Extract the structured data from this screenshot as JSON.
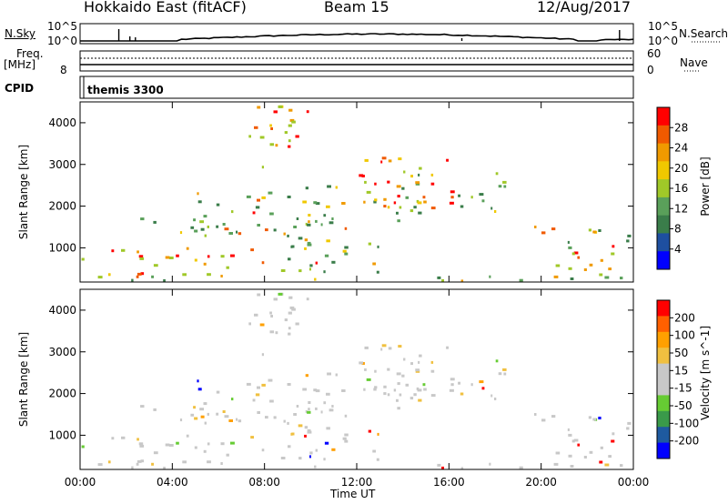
{
  "header": {
    "station": "Hokkaido East (fitACF)",
    "beam": "Beam 15",
    "date": "12/Aug/2017"
  },
  "top_panel": {
    "nsky_label": "N.Sky",
    "nsearch_label": "N.Search",
    "nsky_ticks": [
      "10^5",
      "10^0"
    ],
    "nsearch_ticks": [
      "10^5",
      "10^0"
    ],
    "freq_label": "Freq.",
    "freq_unit": "[MHz]",
    "freq_tick": "8",
    "nave_label": "Nave",
    "nave_ticks": [
      "60",
      "0"
    ],
    "cpid_label": "CPID",
    "cpid_value": "themis 3300"
  },
  "colors": {
    "power_scale": [
      "#0000ff",
      "#1e4fa0",
      "#3a7d4a",
      "#5aa05a",
      "#a0c828",
      "#f0c800",
      "#f09a00",
      "#f05a00",
      "#ff0000"
    ],
    "velocity_scale": [
      "#ff0000",
      "#ff6000",
      "#ffa000",
      "#f0c040",
      "#c8c8c8",
      "#c8c8c8",
      "#66cc33",
      "#3a9a4a",
      "#1e5aa0",
      "#0000ff"
    ]
  },
  "chart_data": [
    {
      "type": "heatmap",
      "panel": "power",
      "ylabel": "Slant Range [km]",
      "y_ticks": [
        "1000",
        "2000",
        "3000",
        "4000"
      ],
      "ylim": [
        180,
        4500
      ],
      "x_ticks": [
        "00:00",
        "04:00",
        "08:00",
        "12:00",
        "16:00",
        "20:00",
        "00:00"
      ],
      "colorbar_label": "Power [dB]",
      "colorbar_ticks": [
        "4",
        "8",
        "12",
        "16",
        "20",
        "24",
        "28"
      ],
      "range": [
        0,
        30
      ]
    },
    {
      "type": "heatmap",
      "panel": "velocity",
      "ylabel": "Slant Range [km]",
      "y_ticks": [
        "1000",
        "2000",
        "3000",
        "4000"
      ],
      "ylim": [
        180,
        4500
      ],
      "x_ticks": [
        "00:00",
        "04:00",
        "08:00",
        "12:00",
        "16:00",
        "20:00",
        "00:00"
      ],
      "xlabel": "Time UT",
      "colorbar_label": "Velocity [m s^-1]",
      "colorbar_ticks": [
        "200",
        "100",
        "50",
        "15",
        "-15",
        "-50",
        "-100",
        "-200"
      ],
      "range": [
        -250,
        250
      ]
    }
  ]
}
